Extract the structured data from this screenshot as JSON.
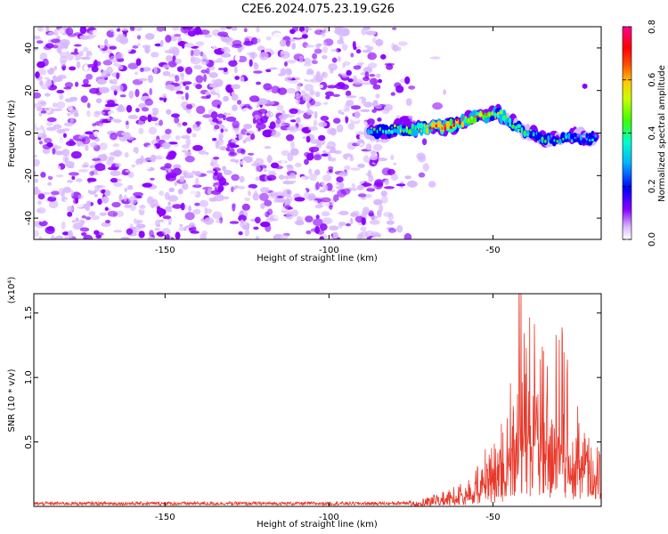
{
  "figure_title": "C2E6.2024.075.23.19.G26",
  "chart_data": [
    {
      "type": "heatmap",
      "title": "",
      "xlabel": "Height of straight line (km)",
      "ylabel": "Frequency (Hz)",
      "xlim": [
        -190,
        -17
      ],
      "ylim": [
        -50,
        50
      ],
      "xticks": [
        -150,
        -100,
        -50
      ],
      "yticks": [
        -40,
        -20,
        0,
        20,
        40
      ],
      "colorbar": {
        "label": "Normalized spectral amplitude",
        "range": [
          0.0,
          0.8
        ],
        "ticks": [
          0.0,
          0.2,
          0.4,
          0.6,
          0.8
        ],
        "colormap": [
          "#ffffff",
          "#c9a3ff",
          "#7a00ff",
          "#0000ff",
          "#00c8ff",
          "#00ff80",
          "#80ff00",
          "#ffff00",
          "#ff8000",
          "#ff0000",
          "#ff00a0"
        ]
      },
      "ridge": {
        "description_points": [
          {
            "x": -88,
            "y": 1,
            "amplitude": 0.3
          },
          {
            "x": -75,
            "y": 2,
            "amplitude": 0.4
          },
          {
            "x": -65,
            "y": 3,
            "amplitude": 0.6
          },
          {
            "x": -60,
            "y": 5,
            "amplitude": 0.5
          },
          {
            "x": -55,
            "y": 8,
            "amplitude": 0.5
          },
          {
            "x": -48,
            "y": 9,
            "amplitude": 0.4
          },
          {
            "x": -44,
            "y": 4,
            "amplitude": 0.35
          },
          {
            "x": -35,
            "y": -3,
            "amplitude": 0.3
          },
          {
            "x": -25,
            "y": -2,
            "amplitude": 0.3
          },
          {
            "x": -18,
            "y": -3,
            "amplitude": 0.25
          }
        ]
      },
      "noise_region": {
        "x_range": [
          -190,
          -85
        ],
        "typical_amplitude": 0.1
      },
      "colors": {
        "noise": "#7a00ff",
        "ridge_core": "#ff0000"
      }
    },
    {
      "type": "line",
      "title": "",
      "xlabel": "Height of straight line (km)",
      "ylabel": "SNR (10 * v/v)",
      "y_multiplier": "(x10⁴)",
      "xlim": [
        -190,
        -17
      ],
      "ylim": [
        0,
        16500
      ],
      "xticks": [
        -150,
        -100,
        -50
      ],
      "yticks": [
        5000,
        10000,
        15000
      ],
      "ytick_labels": [
        "0.5",
        "1.0",
        "1.5"
      ],
      "series": [
        {
          "color": "#e8392b",
          "envelope": [
            {
              "x": -190,
              "y": 300
            },
            {
              "x": -80,
              "y": 300
            },
            {
              "x": -70,
              "y": 600
            },
            {
              "x": -60,
              "y": 1500
            },
            {
              "x": -55,
              "y": 3000
            },
            {
              "x": -50,
              "y": 5000
            },
            {
              "x": -47,
              "y": 6000
            },
            {
              "x": -44,
              "y": 12000
            },
            {
              "x": -42,
              "y": 16500
            },
            {
              "x": -40,
              "y": 14000
            },
            {
              "x": -35,
              "y": 11000
            },
            {
              "x": -30,
              "y": 13500
            },
            {
              "x": -25,
              "y": 8000
            },
            {
              "x": -22,
              "y": 6000
            },
            {
              "x": -17,
              "y": 3500
            }
          ]
        }
      ]
    }
  ]
}
